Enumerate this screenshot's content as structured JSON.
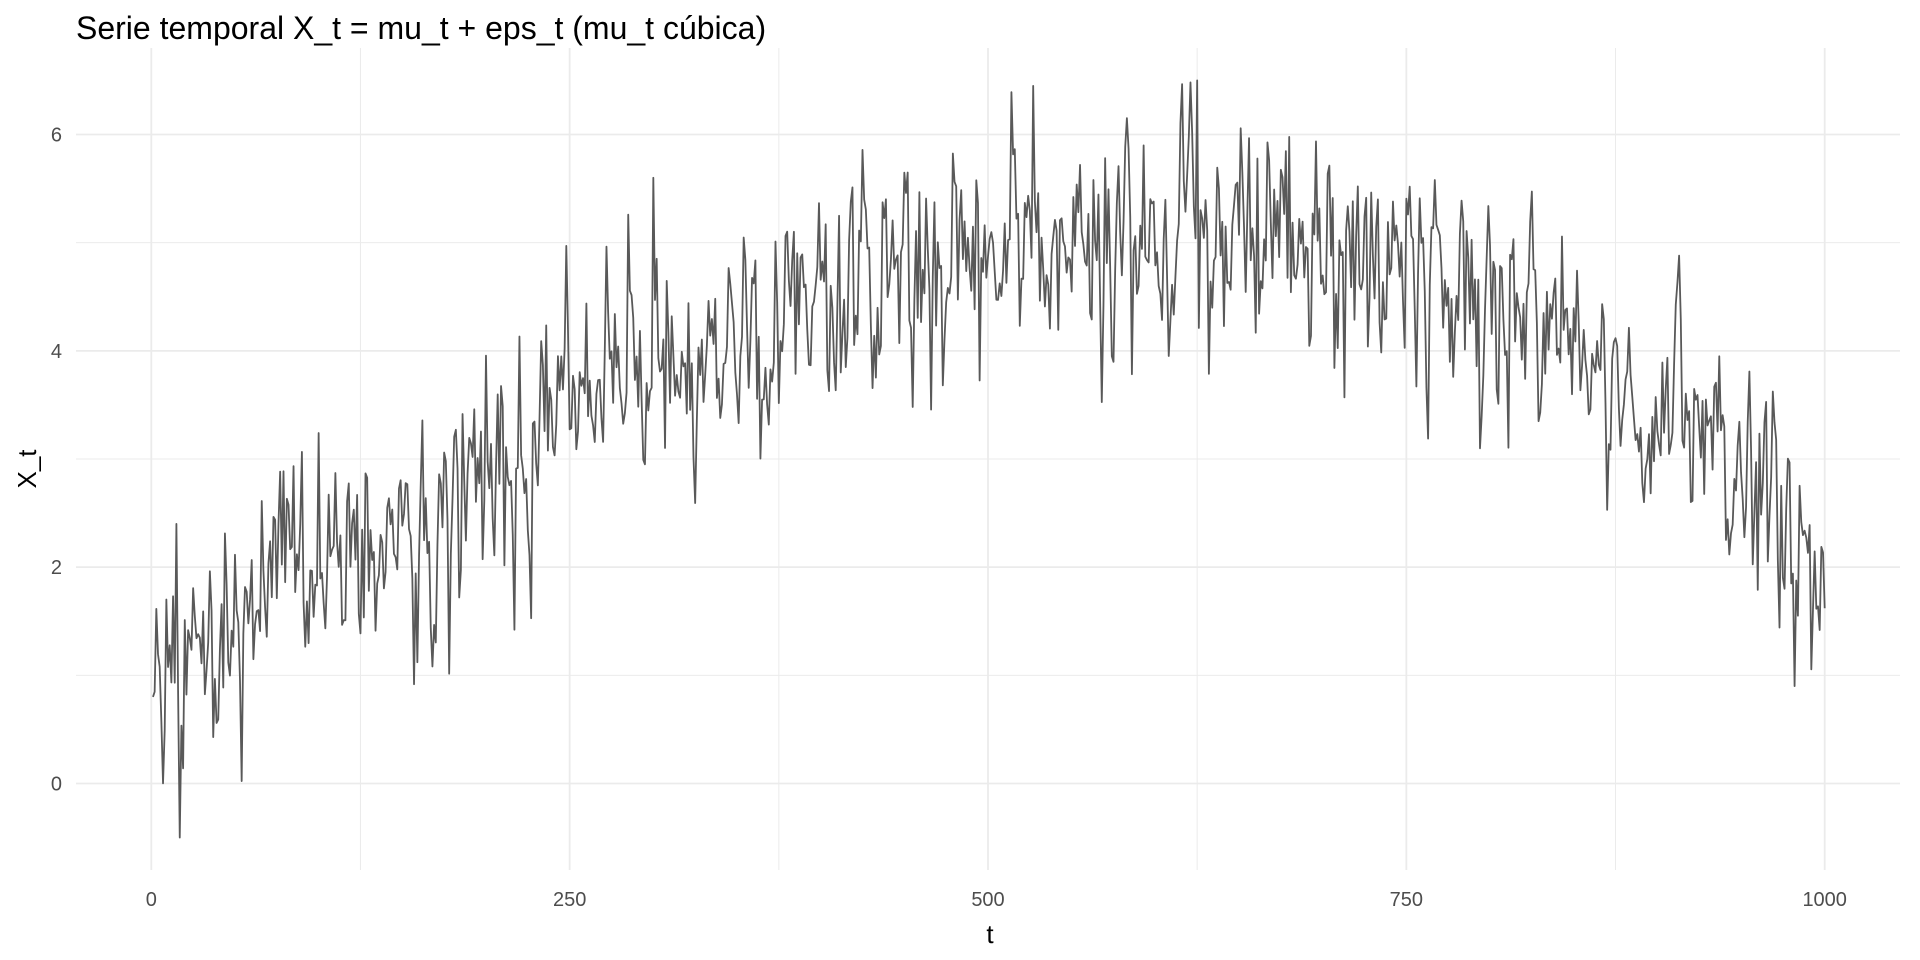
{
  "chart_data": {
    "type": "line",
    "title": "Serie temporal X_t = mu_t + eps_t (mu_t cúbica)",
    "xlabel": "t",
    "ylabel": "X_t",
    "xlim": [
      -45,
      1045
    ],
    "ylim": [
      -0.8,
      6.8
    ],
    "x_ticks": [
      0,
      250,
      500,
      750,
      1000
    ],
    "x_tick_labels": [
      "0",
      "250",
      "500",
      "750",
      "1000"
    ],
    "x_minor_ticks": [
      125,
      375,
      625,
      875
    ],
    "y_ticks": [
      0,
      2,
      4,
      6
    ],
    "y_tick_labels": [
      "0",
      "2",
      "4",
      "6"
    ],
    "y_minor_ticks": [
      1,
      3,
      5
    ],
    "grid": true,
    "legend": "none",
    "line_color": "#595959",
    "grid_color": "#ebebeb",
    "series": [
      {
        "x_start": 1,
        "x_end": 1000,
        "n_points": 1000,
        "trend": "cubic",
        "anchors": [
          [
            1,
            0.8
          ],
          [
            10,
            1.1
          ],
          [
            20,
            1.2
          ],
          [
            40,
            1.4
          ],
          [
            80,
            1.8
          ],
          [
            100,
            2.0
          ],
          [
            150,
            2.4
          ],
          [
            200,
            2.9
          ],
          [
            250,
            3.4
          ],
          [
            300,
            3.8
          ],
          [
            350,
            4.1
          ],
          [
            400,
            4.4
          ],
          [
            450,
            4.65
          ],
          [
            500,
            4.9
          ],
          [
            550,
            5.05
          ],
          [
            600,
            5.1
          ],
          [
            650,
            5.05
          ],
          [
            700,
            4.9
          ],
          [
            750,
            4.7
          ],
          [
            800,
            4.4
          ],
          [
            850,
            4.0
          ],
          [
            900,
            3.5
          ],
          [
            950,
            2.9
          ],
          [
            980,
            2.4
          ],
          [
            1000,
            1.65
          ]
        ],
        "noise_sd": 0.5,
        "notable_points": [
          [
            1,
            0.8
          ],
          [
            15,
            2.4
          ],
          [
            17,
            -0.5
          ],
          [
            248,
            4.97
          ],
          [
            300,
            5.6
          ],
          [
            527,
            6.45
          ],
          [
            625,
            6.5
          ],
          [
            713,
            3.57
          ],
          [
            870,
            2.53
          ],
          [
            937,
            3.95
          ],
          [
            982,
            0.9
          ],
          [
            1000,
            1.62
          ]
        ]
      }
    ]
  }
}
